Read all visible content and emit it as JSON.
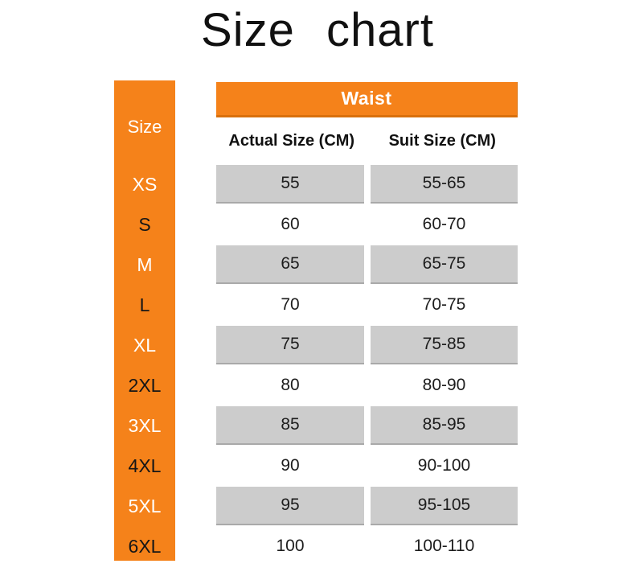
{
  "page": {
    "title": "Size chart"
  },
  "colors": {
    "accent_orange": "#F5821A",
    "shaded_cell": "#CCCCCC",
    "header_text": "#FFFFFF",
    "body_text": "#1D1D1D"
  },
  "chart_data": {
    "type": "table",
    "title": "Size chart",
    "group_header": "Waist",
    "row_header_label": "Size",
    "columns": [
      "Actual Size (CM)",
      "Suit Size (CM)"
    ],
    "rows": [
      {
        "size": "XS",
        "actual": "55",
        "suit": "55-65"
      },
      {
        "size": "S",
        "actual": "60",
        "suit": "60-70"
      },
      {
        "size": "M",
        "actual": "65",
        "suit": "65-75"
      },
      {
        "size": "L",
        "actual": "70",
        "suit": "70-75"
      },
      {
        "size": "XL",
        "actual": "75",
        "suit": "75-85"
      },
      {
        "size": "2XL",
        "actual": "80",
        "suit": "80-90"
      },
      {
        "size": "3XL",
        "actual": "85",
        "suit": "85-95"
      },
      {
        "size": "4XL",
        "actual": "90",
        "suit": "90-100"
      },
      {
        "size": "5XL",
        "actual": "95",
        "suit": "95-105"
      },
      {
        "size": "6XL",
        "actual": "100",
        "suit": "100-110"
      }
    ],
    "layout_hints": {
      "shaded_rows": "alternating, starting with first row (XS)",
      "row_label_color_on_shaded": "white",
      "row_label_color_on_unshaded": "black"
    }
  }
}
